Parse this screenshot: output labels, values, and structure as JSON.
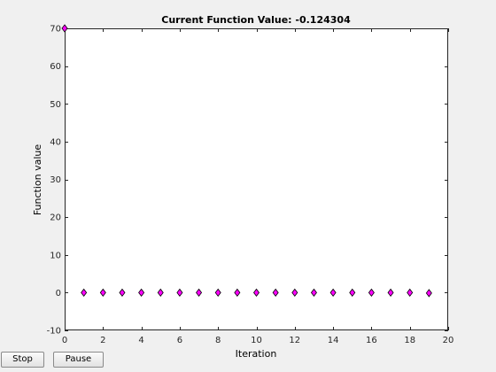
{
  "chart_data": {
    "type": "scatter",
    "title": "Current Function Value: -0.124304",
    "xlabel": "Iteration",
    "ylabel": "Function value",
    "xlim": [
      0,
      20
    ],
    "ylim": [
      -10,
      70
    ],
    "xticks": [
      0,
      2,
      4,
      6,
      8,
      10,
      12,
      14,
      16,
      18,
      20
    ],
    "yticks": [
      -10,
      0,
      10,
      20,
      30,
      40,
      50,
      60,
      70
    ],
    "grid": false,
    "marker": "diamond",
    "marker_color": "#ff00ff",
    "series": [
      {
        "x": [
          0,
          1,
          2,
          3,
          4,
          5,
          6,
          7,
          8,
          9,
          10,
          11,
          12,
          13,
          14,
          15,
          16,
          17,
          18,
          19
        ],
        "values": [
          70,
          0,
          0,
          0,
          0,
          0,
          0,
          0,
          0,
          0,
          0,
          0,
          0,
          0,
          0,
          0,
          0,
          0,
          0,
          -0.124304
        ]
      }
    ]
  },
  "controls": {
    "stop_label": "Stop",
    "pause_label": "Pause"
  }
}
